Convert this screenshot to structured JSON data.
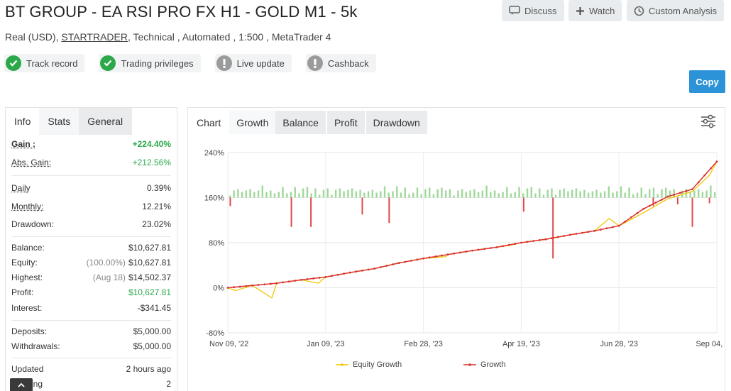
{
  "header": {
    "title": "BT GROUP - EA RSI PRO FX H1 - GOLD M1 - 5k",
    "subtitle_prefix": "Real (USD),",
    "broker": "STARTRADER",
    "subtitle_suffix": ", Technical , Automated , 1:500 , MetaTrader 4"
  },
  "actions": {
    "discuss": "Discuss",
    "watch": "Watch",
    "custom_analysis": "Custom Analysis",
    "copy": "Copy"
  },
  "badges": [
    {
      "label": "Track record",
      "status": "verified",
      "icon": "check-icon"
    },
    {
      "label": "Trading privileges",
      "status": "verified",
      "icon": "check-icon"
    },
    {
      "label": "Live update",
      "status": "unverified",
      "icon": "exclamation-icon"
    },
    {
      "label": "Cashback",
      "status": "unverified",
      "icon": "exclamation-icon"
    }
  ],
  "left_tabs": [
    "Info",
    "Stats",
    "General"
  ],
  "stats": {
    "gain": {
      "label": "Gain :",
      "value": "+224.40%"
    },
    "abs_gain": {
      "label": "Abs. Gain:",
      "value": "+212.56%"
    },
    "daily": {
      "label": "Daily",
      "value": "0.39%"
    },
    "monthly": {
      "label": "Monthly:",
      "value": "12.21%"
    },
    "drawdown": {
      "label": "Drawdown:",
      "value": "23.02%"
    },
    "balance": {
      "label": "Balance:",
      "value": "$10,627.81"
    },
    "equity": {
      "label": "Equity:",
      "note": "(100.00%)",
      "value": "$10,627.81"
    },
    "highest": {
      "label": "Highest:",
      "note": "(Aug 18)",
      "value": "$14,502.37"
    },
    "profit": {
      "label": "Profit:",
      "value": "$10,627.81"
    },
    "interest": {
      "label": "Interest:",
      "value": "-$341.45"
    },
    "deposits": {
      "label": "Deposits:",
      "value": "$5,000.00"
    },
    "withdrawals": {
      "label": "Withdrawals:",
      "value": "$5,000.00"
    },
    "updated": {
      "label": "Updated",
      "value": "2 hours ago"
    },
    "tracking": {
      "label": "ing",
      "value": "2"
    }
  },
  "chart_tabs": {
    "label": "Chart",
    "tabs": [
      "Growth",
      "Balance",
      "Profit",
      "Drawdown"
    ]
  },
  "colors": {
    "equity": "#f2c500",
    "growth": "#d9332b",
    "bar_up": "#9fd89a",
    "bar_down": "#e0474a",
    "copy": "#2d93d8",
    "green": "#2aa84a"
  },
  "chart_data": {
    "type": "line",
    "y_ticks": [
      "240%",
      "160%",
      "80%",
      "0%",
      "-80%"
    ],
    "y_tick_values": [
      240,
      160,
      80,
      0,
      -80
    ],
    "ylim": [
      -80,
      240
    ],
    "x_ticks": [
      "Nov 09, '22",
      "Jan 09, '23",
      "Feb 28, '23",
      "Apr 19, '23",
      "Jun 28, '23",
      "Sep 04, '23"
    ],
    "x": [
      0,
      0.05,
      0.1,
      0.15,
      0.2,
      0.25,
      0.3,
      0.35,
      0.4,
      0.45,
      0.5,
      0.55,
      0.6,
      0.65,
      0.7,
      0.75,
      0.8,
      0.85,
      0.9,
      0.95,
      1.0
    ],
    "series": [
      {
        "name": "Equity Growth",
        "values": [
          0,
          4,
          8,
          14,
          19,
          27,
          34,
          44,
          52,
          59,
          66,
          72,
          80,
          86,
          94,
          101,
          110,
          133,
          158,
          171,
          224
        ]
      },
      {
        "name": "Growth",
        "values": [
          0,
          4,
          8,
          14,
          19,
          27,
          34,
          44,
          52,
          59,
          66,
          72,
          80,
          86,
          94,
          101,
          110,
          140,
          162,
          175,
          224
        ]
      }
    ],
    "equity_dips": [
      {
        "x": 0.015,
        "value": -5
      },
      {
        "x": 0.09,
        "value": -18
      },
      {
        "x": 0.185,
        "value": 8
      },
      {
        "x": 0.445,
        "value": 55
      },
      {
        "x": 0.575,
        "value": 75
      },
      {
        "x": 0.64,
        "value": 85
      },
      {
        "x": 0.78,
        "value": 123
      },
      {
        "x": 0.985,
        "value": 200
      }
    ],
    "profit_bars": {
      "up_count": 120,
      "down": [
        {
          "x": 0.005,
          "value": -15
        },
        {
          "x": 0.13,
          "value": -52
        },
        {
          "x": 0.17,
          "value": -52
        },
        {
          "x": 0.275,
          "value": -30
        },
        {
          "x": 0.33,
          "value": -45
        },
        {
          "x": 0.605,
          "value": -25
        },
        {
          "x": 0.665,
          "value": -108
        },
        {
          "x": 0.87,
          "value": -15
        },
        {
          "x": 0.92,
          "value": -12
        },
        {
          "x": 0.95,
          "value": -52
        },
        {
          "x": 0.985,
          "value": -10
        }
      ]
    },
    "legend_position": "bottom",
    "grid": true
  }
}
